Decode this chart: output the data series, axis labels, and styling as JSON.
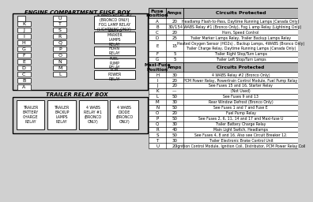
{
  "title_engine": "ENGINE COMPARTMENT FUSE BOX",
  "title_trailer": "TRAILER RELAY BOX",
  "bg_color": "#d0d0d0",
  "relay_labels_engine": [
    "4 WABS RELAY  #2\n(BRONCO ONLY)\nFOG LAMP RELAY\n(LIGHTNING ONLY)",
    "TRAILER\nMARKER\nLAMPS\nRELAY",
    "HORN\nRELAY",
    "FUEL\nPUMP\nRELAY",
    "PCM\nPOWER\nRELAY"
  ],
  "trailer_relays": [
    "TRAILER\nBATTERY\nCHARGE\nRELAY",
    "TRAILER\nBACKUP\nLAMPS\nRELAY",
    "4 WABS\nRELAY #1\n(BRONCO\nONLY)",
    "4 WABS\nDIODE\n(BRONCO\nONLY)"
  ],
  "left_col": [
    "K",
    "J",
    "I",
    "H",
    "G",
    "F",
    "E",
    "D",
    "C",
    "B",
    "A"
  ],
  "right_col": [
    "U",
    "T",
    "S",
    "R",
    "Q",
    "P",
    "O",
    "N",
    "M",
    "L"
  ],
  "fuse_table_headers": [
    "Fuse\nPosition",
    "Amps",
    "Circuits Protected"
  ],
  "fuse_rows": [
    [
      "A",
      "20",
      "Headlamp Flash-to-Pass, Daytime Running Lamps (Canada Only)"
    ],
    [
      "B",
      "30/15",
      "4 WABS Relay #1 (Bronco Only), Fog L amp Relay (Lightning Only)"
    ],
    [
      "C",
      "20",
      "Horn, Speed Control"
    ],
    [
      "D",
      "25",
      "Trailer Marker Lamps Relay, Trailer Backup Lamps Relay"
    ],
    [
      "E",
      "15",
      "Heated Oxygen Sensor (HO2s) , Backup Lamps, 4WABS (Bronco Only)\nTrailer Charge Relay, Daytime Running Lamps (Canada Only)"
    ],
    [
      "F",
      "5",
      "Trailer Right Stop/Turn Lamps"
    ],
    [
      "G",
      "5",
      "Trailer Left Stop/Turn Lamps"
    ]
  ],
  "maxi_headers": [
    "Maxi-Fuse\nPosition",
    "Amps",
    "Circuits Protected"
  ],
  "maxi_rows": [
    [
      "H",
      "30",
      "4 WABS Relay #2 (Bronco Only)"
    ],
    [
      "I",
      "20",
      "PCM Power Relay, Powertrain Control Module, Fuel Pump Relay"
    ],
    [
      "J",
      "20",
      "See Fuses 15 and 16, Starter Relay"
    ],
    [
      "K",
      "—",
      "(Not Used)"
    ],
    [
      "L",
      "50",
      "See Fuses 9 and 13"
    ],
    [
      "M",
      "30",
      "Rear Window Defrost (Bronco Only)"
    ],
    [
      "N",
      "50",
      "See Fuses 1 and 7 and Fuse E"
    ],
    [
      "O",
      "20",
      "Fuel Pump Relay"
    ],
    [
      "P",
      "50",
      "See Fuses 2, 6, 11, 14 and 17 and Maxi-fuse U"
    ],
    [
      "Q",
      "30",
      "Trailer Battery Charge Relay"
    ],
    [
      "R",
      "40",
      "Main Light Switch, Headlamps"
    ],
    [
      "S",
      "50",
      "See Fuses 4, 8 and 16. Also see Circuit Breaker 12."
    ],
    [
      "T",
      "30",
      "Trailer Electronic Brake Control Unit"
    ],
    [
      "U",
      "20",
      "Ignition Control Module, Ignition Coil, Distributor, PCM Power Relay Coil"
    ]
  ]
}
